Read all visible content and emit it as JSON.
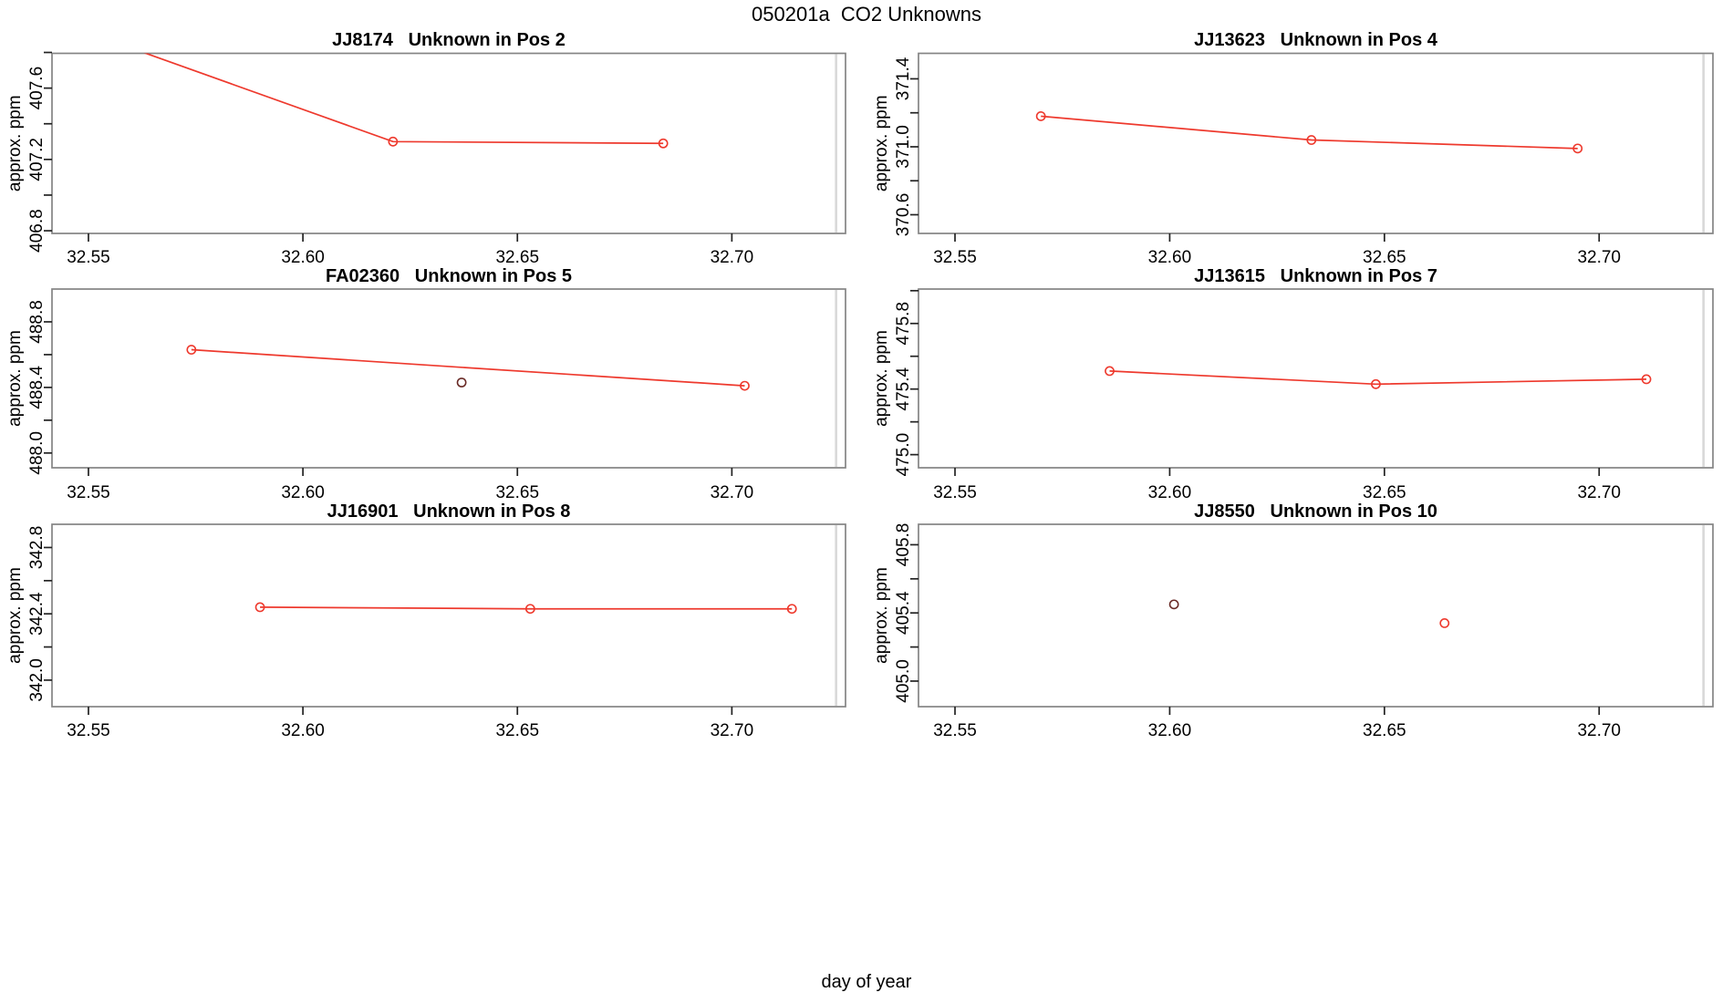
{
  "page": {
    "title": "050201a  CO2 Unknowns",
    "xlabel": "day of year",
    "colors": {
      "background": "#ffffff",
      "box_border": "#848484",
      "tick": "#222222",
      "text": "#000000",
      "marker_line": "#ee392d",
      "flagged_point": "#6a2b27",
      "end_marker_line": "#d9d9d9"
    }
  },
  "chart_data": [
    {
      "type": "line",
      "grid": {
        "col": 0,
        "row": 0
      },
      "title": "JJ8174   Unknown in Pos 2",
      "ylabel": "approx. ppm",
      "xlim": [
        32.5415,
        32.7265
      ],
      "ylim": [
        406.785,
        407.795
      ],
      "xticks": {
        "values": [
          32.55,
          32.6,
          32.65,
          32.7
        ],
        "labels": [
          "32.55",
          "32.60",
          "32.65",
          "32.70"
        ]
      },
      "yticks": {
        "values": [
          406.8,
          407.0,
          407.2,
          407.4,
          407.6,
          407.8
        ],
        "labels": [
          "406.8",
          "",
          "407.2",
          "",
          "407.6",
          ""
        ]
      },
      "vline_x": 32.7243,
      "legend": "none",
      "series": [
        {
          "name": "measurements",
          "color": "#ee392d",
          "draw_line": true,
          "points": [
            [
              32.557,
              407.85
            ],
            [
              32.621,
              407.3
            ],
            [
              32.684,
              407.29
            ]
          ]
        }
      ]
    },
    {
      "type": "line",
      "grid": {
        "col": 1,
        "row": 0
      },
      "title": "JJ13623   Unknown in Pos 4",
      "ylabel": "approx. ppm",
      "xlim": [
        32.5415,
        32.7265
      ],
      "ylim": [
        370.49,
        371.55
      ],
      "xticks": {
        "values": [
          32.55,
          32.6,
          32.65,
          32.7
        ],
        "labels": [
          "32.55",
          "32.60",
          "32.65",
          "32.70"
        ]
      },
      "yticks": {
        "values": [
          370.6,
          370.8,
          371.0,
          371.2,
          371.4
        ],
        "labels": [
          "370.6",
          "",
          "371.0",
          "",
          "371.4"
        ]
      },
      "vline_x": 32.7243,
      "legend": "none",
      "series": [
        {
          "name": "measurements",
          "color": "#ee392d",
          "draw_line": true,
          "points": [
            [
              32.57,
              371.18
            ],
            [
              32.633,
              371.04
            ],
            [
              32.695,
              370.99
            ]
          ]
        }
      ]
    },
    {
      "type": "line",
      "grid": {
        "col": 0,
        "row": 1
      },
      "title": "FA02360   Unknown in Pos 5",
      "ylabel": "approx. ppm",
      "xlim": [
        32.5415,
        32.7265
      ],
      "ylim": [
        487.91,
        489.0
      ],
      "xticks": {
        "values": [
          32.55,
          32.6,
          32.65,
          32.7
        ],
        "labels": [
          "32.55",
          "32.60",
          "32.65",
          "32.70"
        ]
      },
      "yticks": {
        "values": [
          488.0,
          488.2,
          488.4,
          488.6,
          488.8
        ],
        "labels": [
          "488.0",
          "",
          "488.4",
          "",
          "488.8"
        ]
      },
      "vline_x": 32.7243,
      "legend": "none",
      "series": [
        {
          "name": "measurements",
          "color": "#ee392d",
          "draw_line": true,
          "points": [
            [
              32.574,
              488.63
            ],
            [
              32.703,
              488.41
            ]
          ]
        },
        {
          "name": "flagged",
          "color": "#6a2b27",
          "draw_line": false,
          "points": [
            [
              32.637,
              488.43
            ]
          ]
        }
      ]
    },
    {
      "type": "line",
      "grid": {
        "col": 1,
        "row": 1
      },
      "title": "JJ13615   Unknown in Pos 7",
      "ylabel": "approx. ppm",
      "xlim": [
        32.5415,
        32.7265
      ],
      "ylim": [
        474.92,
        476.01
      ],
      "xticks": {
        "values": [
          32.55,
          32.6,
          32.65,
          32.7
        ],
        "labels": [
          "32.55",
          "32.60",
          "32.65",
          "32.70"
        ]
      },
      "yticks": {
        "values": [
          475.0,
          475.2,
          475.4,
          475.6,
          475.8,
          476.0
        ],
        "labels": [
          "475.0",
          "",
          "475.4",
          "",
          "475.8",
          ""
        ]
      },
      "vline_x": 32.7243,
      "legend": "none",
      "series": [
        {
          "name": "measurements",
          "color": "#ee392d",
          "draw_line": true,
          "points": [
            [
              32.586,
              475.51
            ],
            [
              32.648,
              475.43
            ],
            [
              32.711,
              475.46
            ]
          ]
        }
      ]
    },
    {
      "type": "line",
      "grid": {
        "col": 0,
        "row": 2
      },
      "title": "JJ16901   Unknown in Pos 8",
      "ylabel": "approx. ppm",
      "xlim": [
        32.5415,
        32.7265
      ],
      "ylim": [
        341.84,
        342.94
      ],
      "xticks": {
        "values": [
          32.55,
          32.6,
          32.65,
          32.7
        ],
        "labels": [
          "32.55",
          "32.60",
          "32.65",
          "32.70"
        ]
      },
      "yticks": {
        "values": [
          342.0,
          342.2,
          342.4,
          342.6,
          342.8
        ],
        "labels": [
          "342.0",
          "",
          "342.4",
          "",
          "342.8"
        ]
      },
      "vline_x": 32.7243,
      "legend": "none",
      "series": [
        {
          "name": "measurements",
          "color": "#ee392d",
          "draw_line": true,
          "points": [
            [
              32.59,
              342.44
            ],
            [
              32.653,
              342.43
            ],
            [
              32.714,
              342.43
            ]
          ]
        }
      ]
    },
    {
      "type": "line",
      "grid": {
        "col": 1,
        "row": 2
      },
      "title": "JJ8550   Unknown in Pos 10",
      "ylabel": "approx. ppm",
      "xlim": [
        32.5415,
        32.7265
      ],
      "ylim": [
        404.85,
        405.92
      ],
      "xticks": {
        "values": [
          32.55,
          32.6,
          32.65,
          32.7
        ],
        "labels": [
          "32.55",
          "32.60",
          "32.65",
          "32.70"
        ]
      },
      "yticks": {
        "values": [
          405.0,
          405.2,
          405.4,
          405.6,
          405.8
        ],
        "labels": [
          "405.0",
          "",
          "405.4",
          "",
          "405.8"
        ]
      },
      "vline_x": 32.7243,
      "legend": "none",
      "series": [
        {
          "name": "flagged",
          "color": "#6a2b27",
          "draw_line": false,
          "points": [
            [
              32.601,
              405.45
            ]
          ]
        },
        {
          "name": "measurements",
          "color": "#ee392d",
          "draw_line": true,
          "points": [
            [
              32.664,
              405.34
            ]
          ]
        }
      ]
    }
  ]
}
